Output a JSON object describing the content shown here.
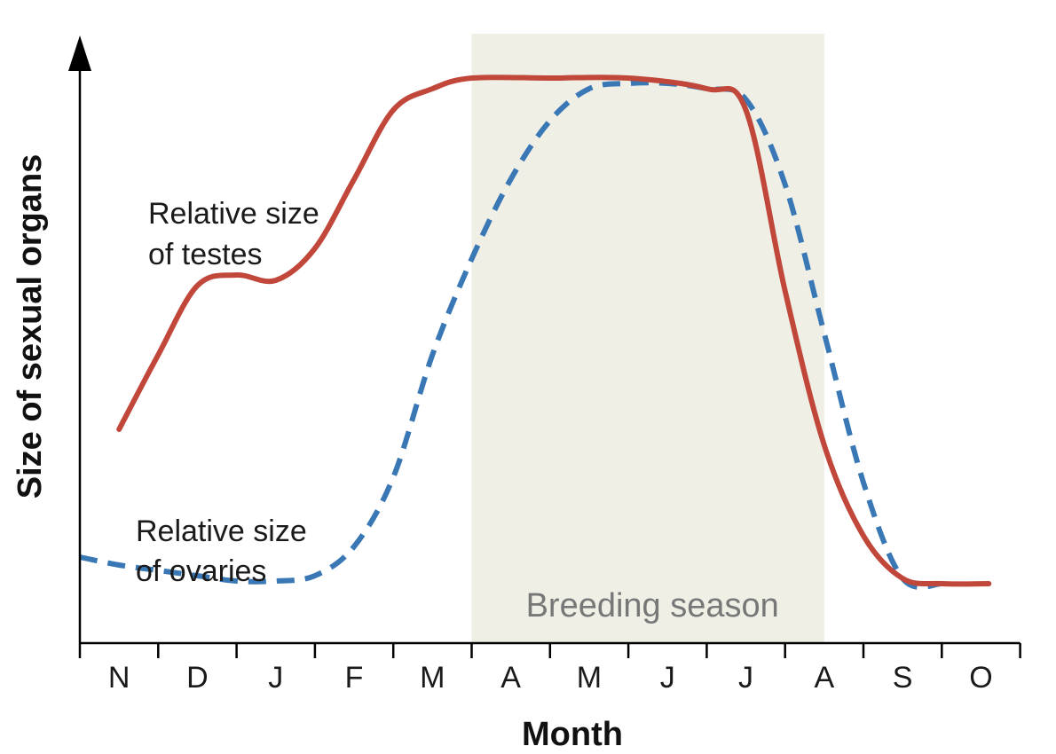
{
  "chart_data": {
    "type": "line",
    "xlabel": "Month",
    "ylabel": "Size of sexual organs",
    "categories": [
      "N",
      "D",
      "J",
      "F",
      "M",
      "A",
      "M",
      "J",
      "J",
      "A",
      "S",
      "O"
    ],
    "shaded_region": {
      "label": "Breeding season",
      "x_start": 5,
      "x_end": 9.5
    },
    "series": [
      {
        "name": "Relative size of testes",
        "style": "solid",
        "color": "#c0473a",
        "points": [
          [
            0.5,
            3.4
          ],
          [
            1.0,
            4.8
          ],
          [
            1.5,
            6.1
          ],
          [
            2.0,
            6.3
          ],
          [
            2.5,
            6.2
          ],
          [
            3.0,
            6.8
          ],
          [
            3.5,
            8.1
          ],
          [
            4.0,
            9.4
          ],
          [
            4.5,
            9.8
          ],
          [
            5.0,
            10.0
          ],
          [
            6.0,
            10.0
          ],
          [
            7.0,
            10.0
          ],
          [
            8.0,
            9.8
          ],
          [
            8.5,
            9.4
          ],
          [
            9.0,
            6.0
          ],
          [
            9.5,
            3.1
          ],
          [
            10.0,
            1.4
          ],
          [
            10.5,
            0.6
          ],
          [
            11.0,
            0.5
          ],
          [
            11.6,
            0.5
          ]
        ]
      },
      {
        "name": "Relative size of ovaries",
        "style": "dashed",
        "color": "#3a78b5",
        "points": [
          [
            0.0,
            1.0
          ],
          [
            0.5,
            0.85
          ],
          [
            1.0,
            0.75
          ],
          [
            1.5,
            0.65
          ],
          [
            2.0,
            0.55
          ],
          [
            2.5,
            0.55
          ],
          [
            3.0,
            0.65
          ],
          [
            3.5,
            1.2
          ],
          [
            4.0,
            2.5
          ],
          [
            4.5,
            4.8
          ],
          [
            5.0,
            6.6
          ],
          [
            5.5,
            8.1
          ],
          [
            6.0,
            9.2
          ],
          [
            6.5,
            9.8
          ],
          [
            7.0,
            9.9
          ],
          [
            7.5,
            9.9
          ],
          [
            8.0,
            9.8
          ],
          [
            8.5,
            9.6
          ],
          [
            9.0,
            8.0
          ],
          [
            9.5,
            5.2
          ],
          [
            10.0,
            2.4
          ],
          [
            10.5,
            0.6
          ],
          [
            11.0,
            0.5
          ]
        ]
      }
    ],
    "annotations": [
      {
        "lines": [
          "Relative size",
          "of testes"
        ]
      },
      {
        "lines": [
          "Relative size",
          "of ovaries"
        ]
      }
    ],
    "grid": false,
    "legend": "none"
  }
}
